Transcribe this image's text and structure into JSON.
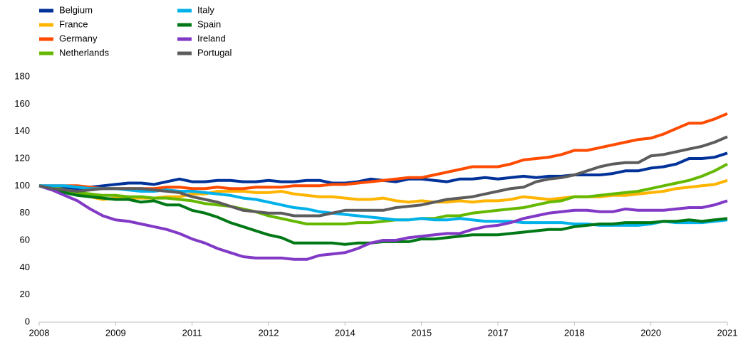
{
  "chart_data": {
    "type": "line",
    "categories": [
      "2008",
      null,
      null,
      null,
      null,
      null,
      "2009",
      null,
      null,
      null,
      null,
      null,
      "2011",
      null,
      null,
      null,
      null,
      null,
      "2012",
      null,
      null,
      null,
      null,
      null,
      "2014",
      null,
      null,
      null,
      null,
      null,
      "2015",
      null,
      null,
      null,
      null,
      null,
      "2017",
      null,
      null,
      null,
      null,
      null,
      "2018",
      null,
      null,
      null,
      null,
      null,
      "2020",
      null,
      null,
      null,
      null,
      null,
      "2021"
    ],
    "ylim": [
      0,
      180
    ],
    "yticks": [
      0,
      20,
      40,
      60,
      80,
      100,
      120,
      140,
      160,
      180
    ],
    "grid": false,
    "legend": "top-left",
    "series": [
      {
        "name": "Belgium",
        "color": "#003299",
        "values": [
          100,
          99,
          98,
          98,
          99,
          100,
          101,
          102,
          102,
          101,
          103,
          105,
          103,
          103,
          104,
          104,
          103,
          103,
          104,
          103,
          103,
          104,
          104,
          102,
          102,
          103,
          105,
          104,
          103,
          105,
          105,
          104,
          103,
          105,
          105,
          106,
          105,
          106,
          107,
          106,
          107,
          107,
          108,
          108,
          108,
          109,
          111,
          111,
          113,
          114,
          116,
          120,
          120,
          121,
          124
        ]
      },
      {
        "name": "France",
        "color": "#ffb400",
        "values": [
          100,
          99,
          97,
          95,
          92,
          90,
          91,
          91,
          91,
          91,
          92,
          92,
          94,
          94,
          96,
          96,
          96,
          95,
          95,
          96,
          94,
          93,
          92,
          92,
          91,
          90,
          90,
          91,
          89,
          88,
          89,
          88,
          88,
          89,
          88,
          89,
          89,
          90,
          92,
          91,
          90,
          91,
          92,
          92,
          92,
          93,
          93,
          94,
          95,
          96,
          98,
          99,
          100,
          101,
          104
        ]
      },
      {
        "name": "Germany",
        "color": "#ff4b00",
        "values": [
          100,
          100,
          100,
          100,
          99,
          98,
          98,
          98,
          98,
          98,
          99,
          99,
          98,
          98,
          99,
          98,
          98,
          99,
          99,
          99,
          100,
          100,
          100,
          101,
          101,
          102,
          103,
          104,
          105,
          106,
          106,
          108,
          110,
          112,
          114,
          114,
          114,
          116,
          119,
          120,
          121,
          123,
          126,
          126,
          128,
          130,
          132,
          134,
          135,
          138,
          142,
          146,
          146,
          149,
          153
        ]
      },
      {
        "name": "Netherlands",
        "color": "#65b800",
        "values": [
          100,
          99,
          97,
          95,
          94,
          93,
          93,
          92,
          92,
          91,
          91,
          90,
          89,
          87,
          86,
          85,
          83,
          81,
          78,
          76,
          74,
          72,
          72,
          72,
          72,
          73,
          73,
          74,
          75,
          75,
          76,
          76,
          78,
          78,
          80,
          81,
          82,
          83,
          84,
          86,
          88,
          89,
          92,
          92,
          93,
          94,
          95,
          96,
          98,
          100,
          102,
          104,
          107,
          111,
          116
        ]
      },
      {
        "name": "Italy",
        "color": "#00b1ea",
        "values": [
          100,
          100,
          100,
          99,
          98,
          98,
          98,
          97,
          96,
          96,
          97,
          96,
          96,
          95,
          94,
          93,
          91,
          90,
          88,
          86,
          84,
          83,
          81,
          80,
          79,
          78,
          77,
          76,
          75,
          75,
          76,
          75,
          75,
          76,
          75,
          74,
          74,
          74,
          73,
          73,
          73,
          73,
          72,
          72,
          71,
          71,
          71,
          71,
          72,
          74,
          73,
          73,
          73,
          74,
          75
        ]
      },
      {
        "name": "Spain",
        "color": "#007816",
        "values": [
          100,
          97,
          95,
          93,
          92,
          91,
          90,
          90,
          88,
          89,
          86,
          86,
          82,
          80,
          77,
          73,
          70,
          67,
          64,
          62,
          58,
          58,
          58,
          58,
          57,
          58,
          58,
          59,
          59,
          59,
          61,
          61,
          62,
          63,
          64,
          64,
          64,
          65,
          66,
          67,
          68,
          68,
          70,
          71,
          72,
          72,
          73,
          73,
          73,
          74,
          74,
          75,
          74,
          75,
          76
        ]
      },
      {
        "name": "Ireland",
        "color": "#8139c6",
        "values": [
          100,
          97,
          93,
          89,
          83,
          78,
          75,
          74,
          72,
          70,
          68,
          65,
          61,
          58,
          54,
          51,
          48,
          47,
          47,
          47,
          46,
          46,
          49,
          50,
          51,
          54,
          58,
          60,
          60,
          62,
          63,
          64,
          65,
          65,
          68,
          70,
          71,
          73,
          76,
          78,
          80,
          81,
          82,
          82,
          81,
          81,
          83,
          82,
          82,
          82,
          83,
          84,
          84,
          86,
          89
        ]
      },
      {
        "name": "Portugal",
        "color": "#5c5c5c",
        "values": [
          100,
          98,
          97,
          96,
          97,
          98,
          98,
          98,
          98,
          97,
          96,
          95,
          92,
          90,
          88,
          85,
          82,
          81,
          80,
          80,
          78,
          78,
          78,
          80,
          82,
          82,
          82,
          82,
          84,
          85,
          86,
          88,
          90,
          91,
          92,
          94,
          96,
          98,
          99,
          103,
          105,
          106,
          108,
          111,
          114,
          116,
          117,
          117,
          122,
          123,
          125,
          127,
          129,
          132,
          136
        ]
      }
    ]
  }
}
